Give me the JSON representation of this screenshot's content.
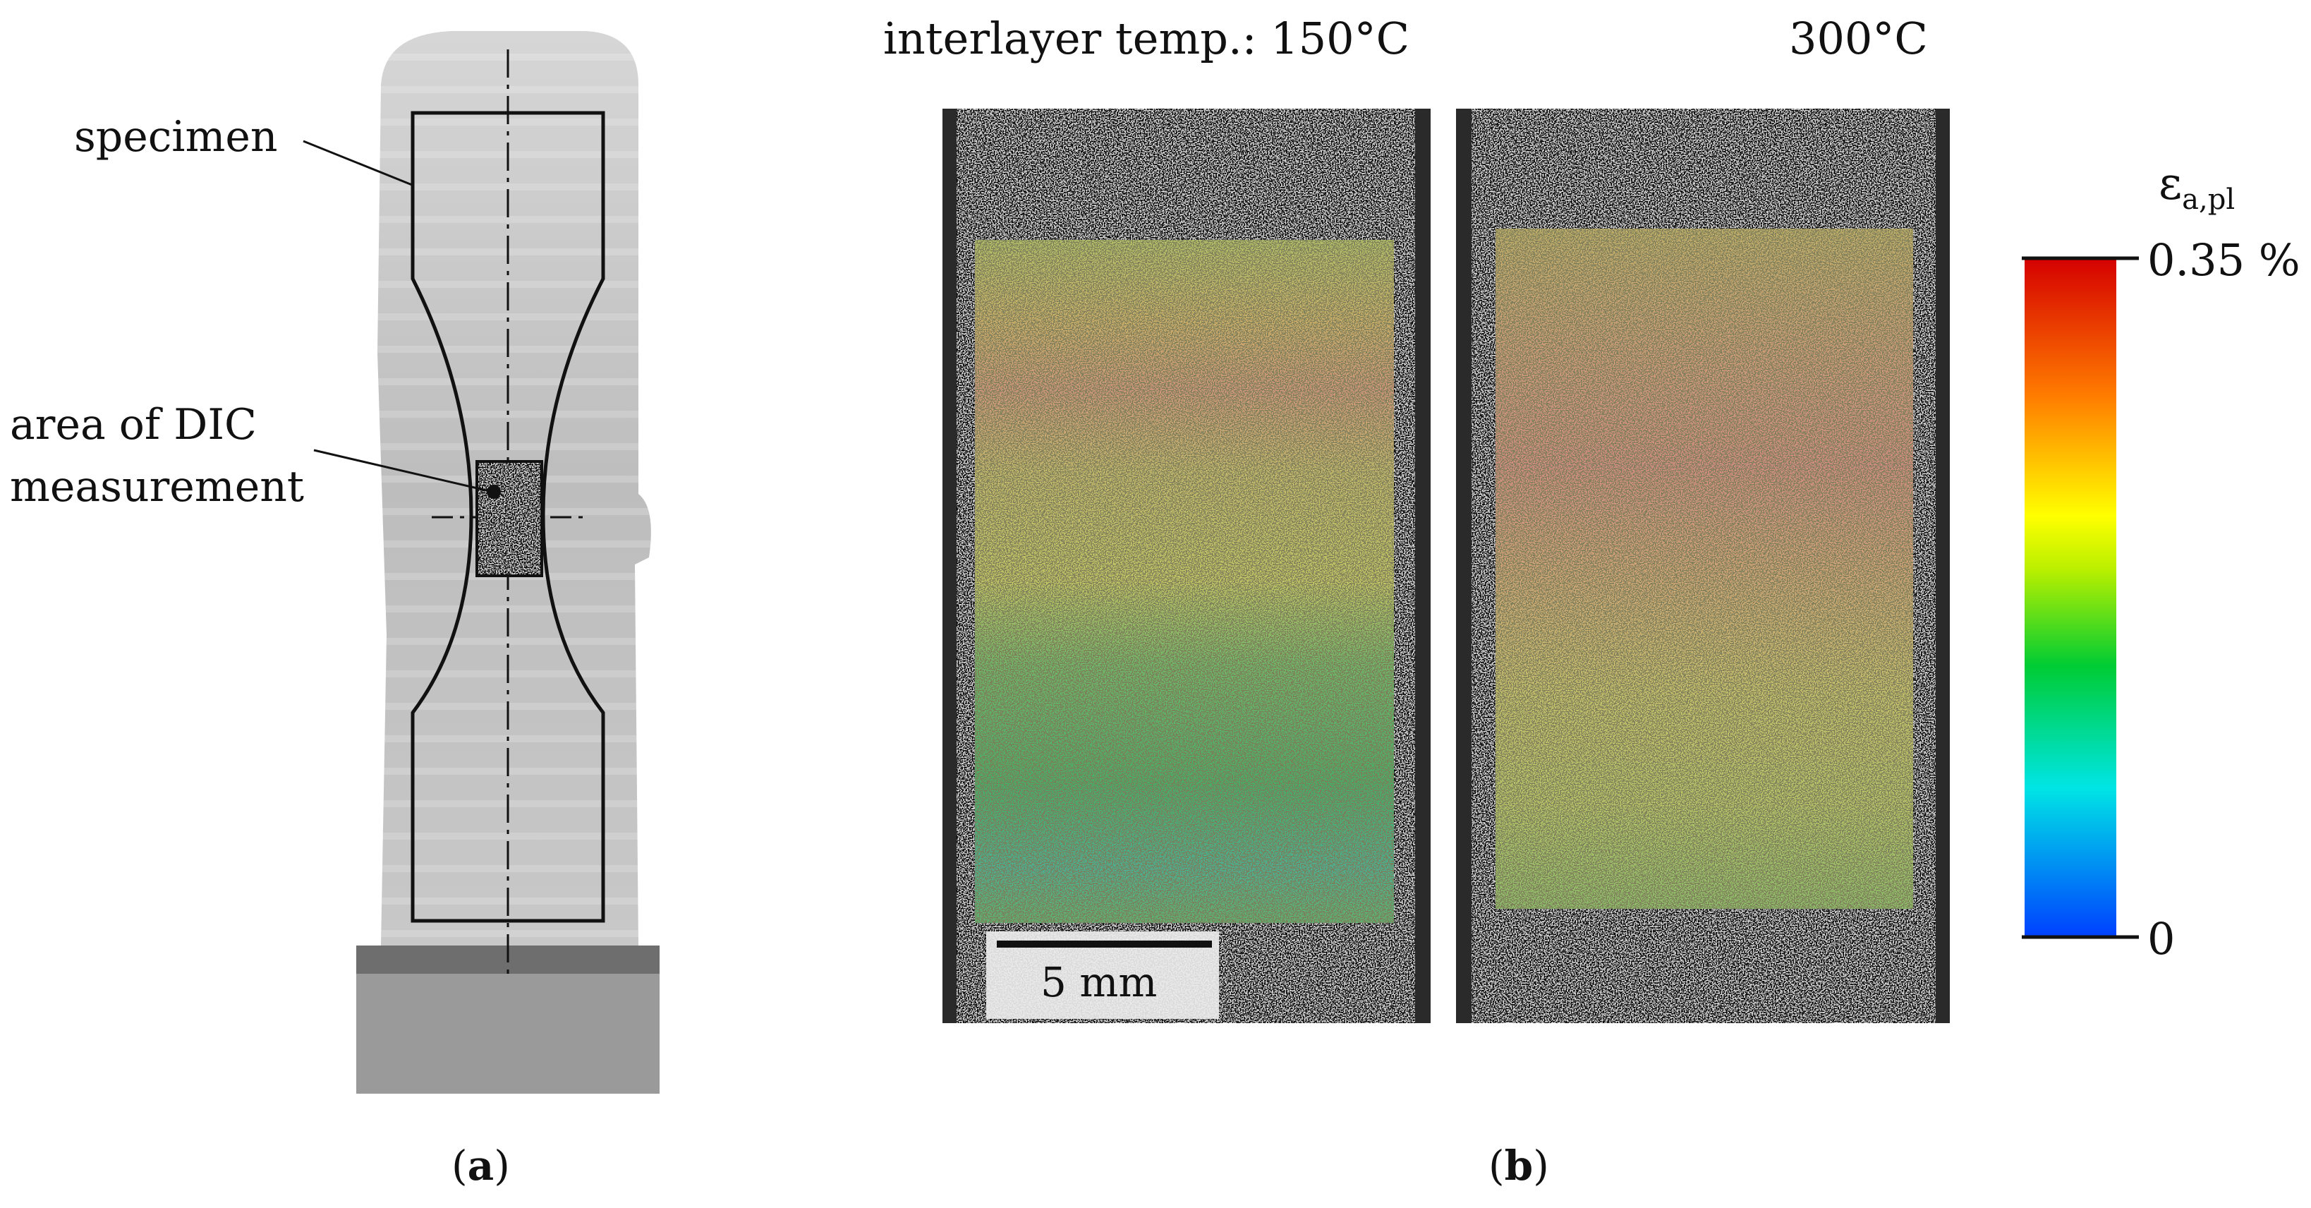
{
  "panel_a": {
    "label_specimen": "specimen",
    "label_dic_line1": "area of DIC",
    "label_dic_line2": "measurement",
    "caption_open": "(",
    "caption_letter": "a",
    "caption_close": ")"
  },
  "panel_b": {
    "title_left": "interlayer temp.: 150°C",
    "title_right": "300°C",
    "scale_bar": "5 mm",
    "colorbar": {
      "symbol": "ε",
      "subscript": "a,pl",
      "max_label": "0.35 %",
      "min_label": "0"
    },
    "caption_open": "(",
    "caption_letter": "b",
    "caption_close": ")"
  },
  "colors": {
    "outline": "#111111",
    "background": "#ffffff",
    "colormap": [
      "#d40000",
      "#ff7a00",
      "#ffff00",
      "#00cc33",
      "#00e5e5",
      "#0040ff"
    ]
  }
}
